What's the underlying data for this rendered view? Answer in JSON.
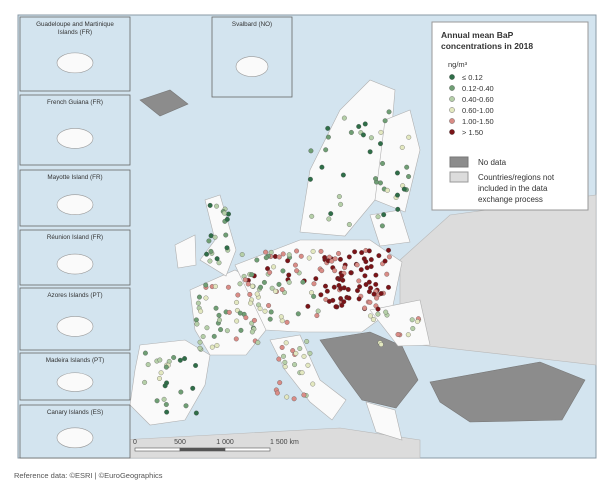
{
  "insets": [
    {
      "label": "Guadeloupe and Martinique Islands (FR)"
    },
    {
      "label": "French Guiana (FR)"
    },
    {
      "label": "Mayotte Island (FR)"
    },
    {
      "label": "Réunion Island (FR)"
    },
    {
      "label": "Azores Islands (PT)"
    },
    {
      "label": "Madeira Islands (PT)"
    },
    {
      "label": "Canary Islands (ES)"
    },
    {
      "label": "Svalbard (NO)"
    }
  ],
  "legend": {
    "title": [
      "Annual mean BaP",
      "concentrations in 2018"
    ],
    "unit": "ng/m³",
    "classes": [
      {
        "label": "≤ 0.12",
        "color": "#2f6e48"
      },
      {
        "label": "0.12-0.40",
        "color": "#6f9e74"
      },
      {
        "label": "0.40-0.60",
        "color": "#b5cfa8"
      },
      {
        "label": "0.60-1.00",
        "color": "#e3e8c0"
      },
      {
        "label": "1.00-1.50",
        "color": "#d98c86"
      },
      {
        "label": "> 1.50",
        "color": "#7a1418"
      }
    ],
    "no_data": {
      "label": "No data",
      "color": "#8c8c8c"
    },
    "not_included": {
      "label": [
        "Countries/regions not",
        "included in the data",
        "exchange process"
      ],
      "color": "#dcdcdc"
    }
  },
  "scale_bar": {
    "labels": [
      "0",
      "500",
      "1 000",
      "1 500 km"
    ]
  },
  "footer": "Reference data: ©ESRI | ©EuroGeographics"
}
